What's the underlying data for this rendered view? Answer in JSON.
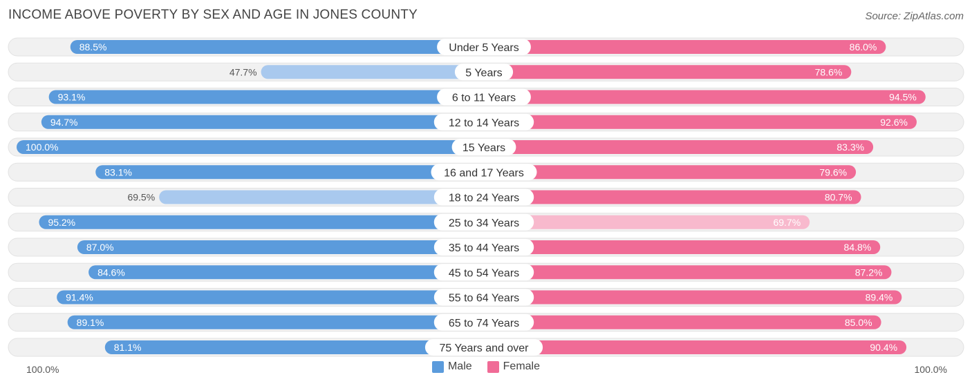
{
  "chart_data": {
    "type": "bar",
    "title": "INCOME ABOVE POVERTY BY SEX AND AGE IN JONES COUNTY",
    "source": "Source: ZipAtlas.com",
    "categories": [
      "Under 5 Years",
      "5 Years",
      "6 to 11 Years",
      "12 to 14 Years",
      "15 Years",
      "16 and 17 Years",
      "18 to 24 Years",
      "25 to 34 Years",
      "35 to 44 Years",
      "45 to 54 Years",
      "55 to 64 Years",
      "65 to 74 Years",
      "75 Years and over"
    ],
    "series": [
      {
        "name": "Male",
        "values": [
          88.5,
          47.7,
          93.1,
          94.7,
          100.0,
          83.1,
          69.5,
          95.2,
          87.0,
          84.6,
          91.4,
          89.1,
          81.1
        ],
        "labels": [
          "88.5%",
          "47.7%",
          "93.1%",
          "94.7%",
          "100.0%",
          "83.1%",
          "69.5%",
          "95.2%",
          "87.0%",
          "84.6%",
          "91.4%",
          "89.1%",
          "81.1%"
        ]
      },
      {
        "name": "Female",
        "values": [
          86.0,
          78.6,
          94.5,
          92.6,
          83.3,
          79.6,
          80.7,
          69.7,
          84.8,
          87.2,
          89.4,
          85.0,
          90.4
        ],
        "labels": [
          "86.0%",
          "78.6%",
          "94.5%",
          "92.6%",
          "83.3%",
          "79.6%",
          "80.7%",
          "69.7%",
          "84.8%",
          "87.2%",
          "89.4%",
          "85.0%",
          "90.4%"
        ]
      }
    ],
    "xlim": [
      0,
      100
    ],
    "axis_left_label": "100.0%",
    "axis_right_label": "100.0%",
    "legend": {
      "position": "bottom-center",
      "male_label": "Male",
      "female_label": "Female"
    },
    "colors": {
      "male_strong": "#5b9bdc",
      "male_light": "#a9c9ee",
      "female_strong": "#f06b96",
      "female_light": "#f8b9cd",
      "track": "#f1f1f1"
    }
  }
}
